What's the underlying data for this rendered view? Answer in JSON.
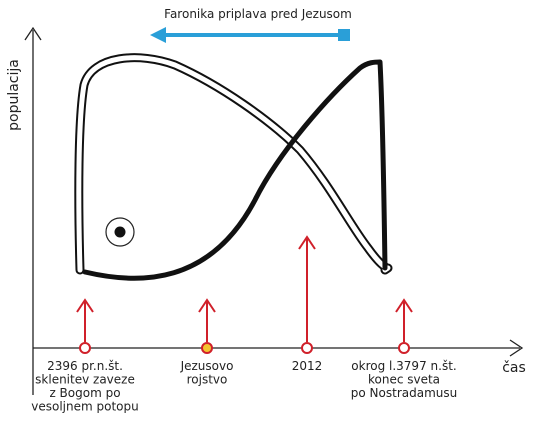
{
  "title": "Faronika priplava pred Jezusom",
  "axes": {
    "y_label": "populacija",
    "x_label": "čas"
  },
  "markers": [
    {
      "lines": [
        "2396 pr.n.št.",
        "sklenitev zaveze",
        "z Bogom po",
        "vesoljnem potopu"
      ]
    },
    {
      "lines": [
        "Jezusovo",
        "rojstvo"
      ]
    },
    {
      "lines": [
        "2012"
      ]
    },
    {
      "lines": [
        "okrog l.3797 n.št.",
        "konec sveta",
        "po Nostradamusu"
      ]
    }
  ]
}
